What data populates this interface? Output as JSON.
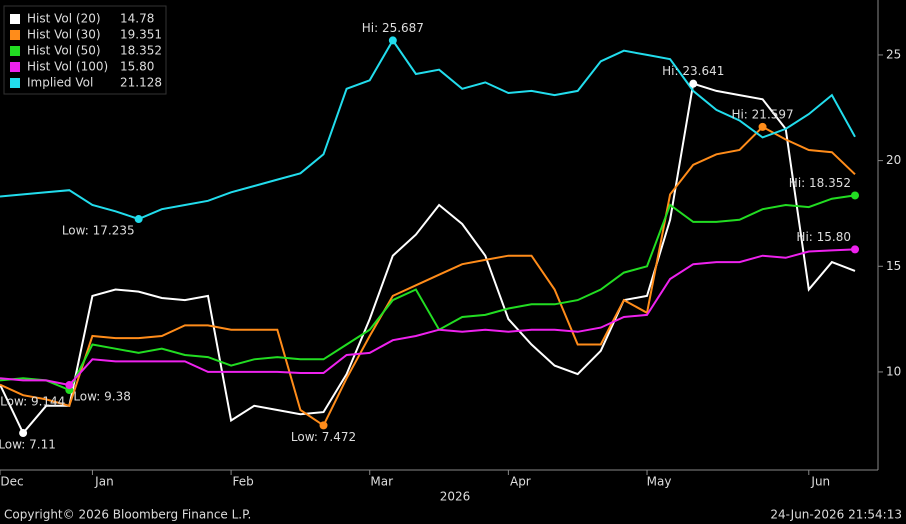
{
  "chart_data": {
    "type": "line",
    "categories": [
      "Dec",
      null,
      null,
      null,
      "Jan",
      null,
      null,
      null,
      null,
      null,
      "Feb",
      null,
      null,
      null,
      null,
      null,
      "Mar",
      null,
      null,
      null,
      null,
      null,
      "Apr",
      null,
      null,
      null,
      null,
      null,
      "May",
      null,
      null,
      null,
      null,
      null,
      null,
      "Jun",
      null,
      null
    ],
    "x_axis_label": "2026",
    "series": [
      {
        "name": "Hist Vol (20)",
        "color": "#ffffff",
        "legend_value": "14.78",
        "hi_label": "Hi: 23.641",
        "low_label": "Low: 7.11",
        "values": [
          9.4,
          7.11,
          8.4,
          8.4,
          13.6,
          13.9,
          13.8,
          13.5,
          13.4,
          13.6,
          7.7,
          8.4,
          8.2,
          8.0,
          8.1,
          9.9,
          12.5,
          15.5,
          16.5,
          17.9,
          17.0,
          15.5,
          12.5,
          11.3,
          10.3,
          9.9,
          11.0,
          13.4,
          13.6,
          17.2,
          23.641,
          23.3,
          23.1,
          22.9,
          21.5,
          13.9,
          15.2,
          14.78
        ]
      },
      {
        "name": "Hist Vol (30)",
        "color": "#ff8c1a",
        "legend_value": "19.351",
        "hi_label": "Hi: 21.597",
        "low_label": "Low: 7.472",
        "values": [
          9.4,
          8.9,
          8.7,
          8.4,
          11.7,
          11.6,
          11.6,
          11.7,
          12.2,
          12.2,
          12.0,
          12.0,
          12.0,
          8.2,
          7.472,
          9.7,
          11.7,
          13.6,
          14.1,
          14.6,
          15.1,
          15.3,
          15.5,
          15.5,
          13.9,
          11.3,
          11.3,
          13.4,
          12.8,
          18.4,
          19.8,
          20.3,
          20.5,
          21.597,
          21.0,
          20.5,
          20.4,
          19.351
        ]
      },
      {
        "name": "Hist Vol (50)",
        "color": "#22dd22",
        "legend_value": "18.352",
        "hi_label": "Hi: 18.352",
        "low_label": "Low: 9.144",
        "values": [
          9.6,
          9.7,
          9.6,
          9.144,
          11.3,
          11.1,
          10.9,
          11.1,
          10.8,
          10.7,
          10.3,
          10.6,
          10.7,
          10.6,
          10.6,
          11.3,
          12.0,
          13.4,
          13.9,
          12.0,
          12.6,
          12.7,
          13.0,
          13.2,
          13.2,
          13.4,
          13.9,
          14.7,
          15.0,
          17.9,
          17.1,
          17.1,
          17.2,
          17.7,
          17.9,
          17.8,
          18.2,
          18.352
        ]
      },
      {
        "name": "Hist Vol (100)",
        "color": "#ee22ee",
        "legend_value": "15.80",
        "hi_label": "Hi: 15.80",
        "low_label": "Low: 9.38",
        "values": [
          9.7,
          9.6,
          9.6,
          9.38,
          10.6,
          10.5,
          10.5,
          10.5,
          10.5,
          10.0,
          10.0,
          10.0,
          10.0,
          9.95,
          9.95,
          10.8,
          10.9,
          11.5,
          11.7,
          12.0,
          11.9,
          12.0,
          11.9,
          12.0,
          12.0,
          11.9,
          12.1,
          12.6,
          12.7,
          14.4,
          15.1,
          15.2,
          15.2,
          15.5,
          15.4,
          15.7,
          15.75,
          15.8
        ]
      },
      {
        "name": "Implied Vol",
        "color": "#22dded",
        "legend_value": "21.128",
        "hi_label": "Hi: 25.687",
        "low_label": "Low: 17.235",
        "values": [
          18.3,
          18.4,
          18.5,
          18.6,
          17.9,
          17.6,
          17.235,
          17.7,
          17.9,
          18.1,
          18.5,
          18.8,
          19.1,
          19.4,
          20.3,
          23.4,
          23.8,
          25.687,
          24.1,
          24.3,
          23.4,
          23.7,
          23.2,
          23.3,
          23.1,
          23.3,
          24.7,
          25.2,
          25.0,
          24.8,
          23.3,
          22.4,
          21.9,
          21.1,
          21.5,
          22.2,
          23.1,
          21.128
        ]
      }
    ],
    "ylim": [
      5.36,
      27.6
    ],
    "yticks": [
      10,
      15,
      20,
      25
    ],
    "grid": false,
    "footer_left": "Copyright© 2026 Bloomberg Finance L.P.",
    "footer_right": "24-Jun-2026 21:54:13"
  }
}
